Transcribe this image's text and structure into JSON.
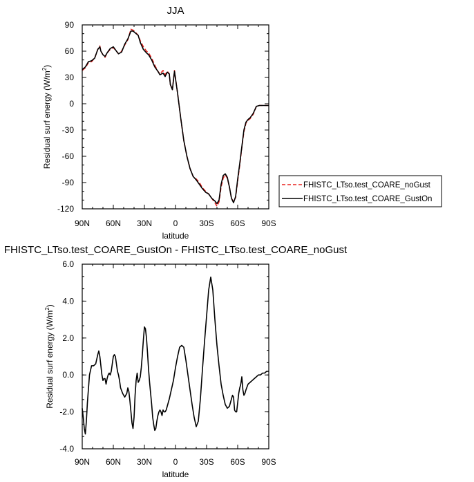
{
  "chart_data": [
    {
      "type": "line",
      "title": "JJA",
      "xlabel": "latitude",
      "ylabel": "Residual surf energy (W/m",
      "ylabel_sup": "2",
      "ylabel_end": ")",
      "xlim": [
        90,
        -90
      ],
      "ylim": [
        -120,
        90
      ],
      "x_ticks": [
        90,
        60,
        30,
        0,
        -30,
        -60,
        -90
      ],
      "x_tick_labels": [
        "90N",
        "60N",
        "30N",
        "0",
        "30S",
        "60S",
        "90S"
      ],
      "y_ticks": [
        90,
        60,
        30,
        0,
        -30,
        -60,
        -90,
        -120
      ],
      "y_tick_labels": [
        "90",
        "60",
        "30",
        "0",
        "-30",
        "-60",
        "-90",
        "-120"
      ],
      "legend_position": "right",
      "x": [
        90,
        87,
        84,
        81,
        78,
        75,
        73,
        72,
        70,
        68,
        66,
        63,
        60,
        57,
        55,
        52,
        49,
        46,
        43,
        41,
        39,
        36,
        34,
        31,
        28,
        26,
        23,
        20,
        17,
        15,
        12,
        10,
        8,
        6,
        5,
        3,
        1,
        -2,
        -5,
        -8,
        -11,
        -14,
        -17,
        -20,
        -23,
        -26,
        -29,
        -32,
        -35,
        -38,
        -40,
        -42,
        -44,
        -46,
        -48,
        -50,
        -52,
        -54,
        -56,
        -58,
        -60,
        -62,
        -64,
        -66,
        -68,
        -70,
        -72,
        -75,
        -78,
        -81,
        -84,
        -87,
        -90
      ],
      "series": [
        {
          "name": "FHISTC_LTso.test_COARE_noGust",
          "color": "#e8221e",
          "dash": "dashed",
          "values": [
            38,
            41,
            47,
            48,
            52,
            62,
            66,
            60,
            56,
            53,
            58,
            62,
            64,
            60,
            57,
            60,
            67,
            73,
            85,
            84,
            82,
            78,
            72,
            65,
            60,
            58,
            52,
            44,
            37,
            34,
            38,
            33,
            37,
            34,
            22,
            16,
            38,
            12,
            -16,
            -42,
            -60,
            -74,
            -83,
            -86,
            -90,
            -96,
            -100,
            -103,
            -108,
            -113,
            -117,
            -112,
            -95,
            -85,
            -81,
            -85,
            -95,
            -108,
            -112,
            -107,
            -88,
            -70,
            -50,
            -32,
            -22,
            -19,
            -17,
            -12,
            -3,
            -2,
            -2,
            -2,
            -2
          ]
        },
        {
          "name": "FHISTC_LTso.test_COARE_GustOn",
          "color": "#000000",
          "dash": "solid",
          "values": [
            39,
            42,
            48,
            49,
            52,
            62,
            65,
            60,
            56,
            54,
            58,
            63,
            65,
            60,
            57,
            59,
            68,
            74,
            83,
            83,
            81,
            78,
            70,
            62,
            58,
            56,
            50,
            42,
            37,
            33,
            35,
            31,
            36,
            34,
            22,
            16,
            37,
            12,
            -16,
            -42,
            -60,
            -74,
            -83,
            -87,
            -92,
            -97,
            -101,
            -103,
            -108,
            -111,
            -114,
            -110,
            -92,
            -82,
            -80,
            -84,
            -95,
            -108,
            -113,
            -106,
            -86,
            -68,
            -49,
            -30,
            -21,
            -18,
            -16,
            -11,
            -3,
            -2,
            -2,
            -2,
            -2
          ]
        }
      ]
    },
    {
      "type": "line",
      "title": "FHISTC_LTso.test_COARE_GustOn - FHISTC_LTso.test_COARE_noGust",
      "xlabel": "latitude",
      "ylabel": "Residual surf energy (W/m",
      "ylabel_sup": "2",
      "ylabel_end": ")",
      "xlim": [
        90,
        -90
      ],
      "ylim": [
        -4,
        6
      ],
      "x_ticks": [
        90,
        60,
        30,
        0,
        -30,
        -60,
        -90
      ],
      "x_tick_labels": [
        "90N",
        "60N",
        "30N",
        "0",
        "30S",
        "60S",
        "90S"
      ],
      "y_ticks": [
        6,
        4,
        2,
        0,
        -2,
        -4
      ],
      "y_tick_labels": [
        "6.0",
        "4.0",
        "2.0",
        "0.0",
        "-2.0",
        "-4.0"
      ],
      "x": [
        90,
        89,
        88,
        87,
        86,
        85,
        83,
        81,
        79,
        77,
        75,
        74,
        73,
        72,
        71,
        70,
        69,
        68,
        67,
        66,
        65,
        64,
        63,
        62,
        61,
        60,
        59,
        58,
        57,
        56,
        55,
        54,
        53,
        51,
        49,
        47,
        46,
        45,
        44,
        43,
        42,
        41,
        40,
        39,
        38,
        37,
        36,
        35,
        34,
        33,
        32,
        31,
        30,
        29,
        28,
        27,
        26,
        25,
        24,
        23,
        22,
        21,
        20,
        19,
        18,
        17,
        16,
        15,
        14,
        13,
        12,
        11,
        10,
        9,
        8,
        6,
        4,
        2,
        0,
        -2,
        -4,
        -6,
        -8,
        -10,
        -12,
        -14,
        -16,
        -18,
        -20,
        -22,
        -24,
        -26,
        -28,
        -30,
        -32,
        -34,
        -36,
        -38,
        -40,
        -42,
        -44,
        -46,
        -48,
        -50,
        -52,
        -54,
        -55,
        -56,
        -57,
        -58,
        -59,
        -60,
        -61,
        -62,
        -63,
        -64,
        -65,
        -66,
        -67,
        -68,
        -70,
        -72,
        -74,
        -76,
        -78,
        -80,
        -82,
        -84,
        -86,
        -88,
        -90
      ],
      "series": [
        {
          "name": "",
          "color": "#000000",
          "dash": "solid",
          "values": [
            -1.8,
            -2.3,
            -2.9,
            -3.2,
            -2.5,
            -1.5,
            0.0,
            0.5,
            0.5,
            0.6,
            1.1,
            1.3,
            1.0,
            0.5,
            0.0,
            -0.3,
            -0.2,
            -0.2,
            -0.5,
            -0.2,
            0.0,
            0.1,
            0.0,
            0.2,
            0.6,
            1.0,
            1.1,
            1.0,
            0.6,
            0.2,
            0.0,
            -0.3,
            -0.7,
            -1.0,
            -1.2,
            -1.0,
            -0.7,
            -0.9,
            -1.4,
            -2.0,
            -2.6,
            -2.9,
            -2.3,
            -1.1,
            -0.3,
            0.1,
            -0.4,
            -0.3,
            -0.1,
            0.4,
            1.1,
            1.9,
            2.6,
            2.5,
            2.0,
            1.2,
            0.3,
            -0.4,
            -1.0,
            -1.6,
            -2.3,
            -2.7,
            -3.0,
            -2.9,
            -2.5,
            -2.2,
            -2.0,
            -1.9,
            -2.0,
            -2.2,
            -1.9,
            -2.0,
            -2.0,
            -1.9,
            -1.7,
            -1.3,
            -0.8,
            -0.3,
            0.4,
            1.0,
            1.5,
            1.6,
            1.5,
            0.8,
            0.0,
            -0.8,
            -1.6,
            -2.3,
            -2.8,
            -2.5,
            -1.3,
            0.3,
            1.8,
            3.2,
            4.6,
            5.3,
            4.6,
            3.0,
            1.6,
            0.5,
            -0.5,
            -1.1,
            -1.6,
            -1.8,
            -1.7,
            -1.3,
            -1.1,
            -1.2,
            -1.9,
            -2.0,
            -2.0,
            -1.5,
            -1.0,
            -0.7,
            -0.5,
            -0.1,
            -0.8,
            -1.1,
            -1.0,
            -0.8,
            -0.5,
            -0.4,
            -0.3,
            -0.2,
            -0.1,
            0.0,
            0.0,
            0.1,
            0.1,
            0.2,
            0.2
          ]
        }
      ]
    }
  ]
}
